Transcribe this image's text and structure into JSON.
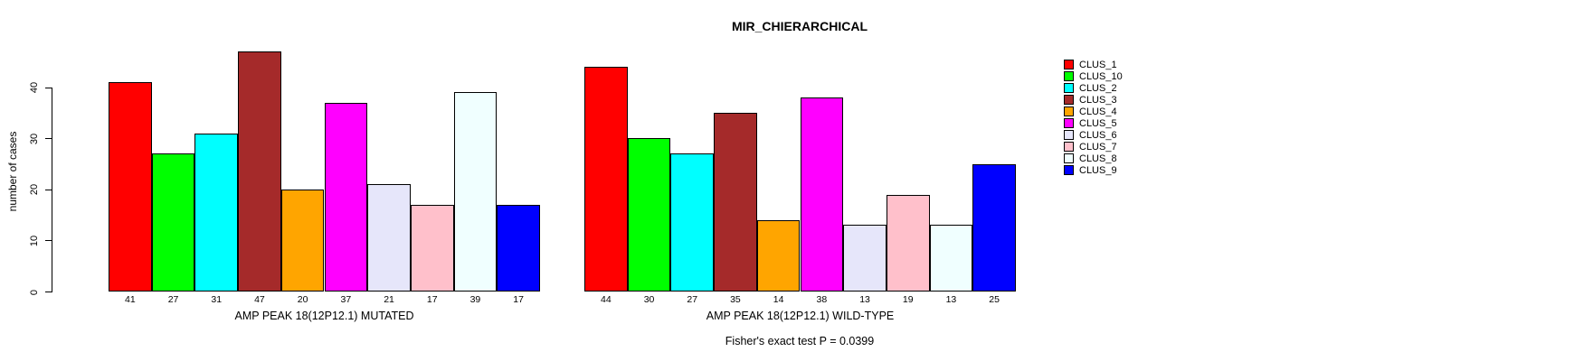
{
  "chart_data": {
    "type": "bar",
    "title": "MIR_CHIERARCHICAL",
    "ylabel": "number of cases",
    "yticks": [
      0,
      10,
      20,
      30,
      40
    ],
    "ylim": [
      0,
      47
    ],
    "grid": false,
    "legend_position": "right",
    "bar_value_labels_shown": true,
    "categories": [
      "AMP PEAK 18(12P12.1) MUTATED",
      "AMP PEAK 18(12P12.1) WILD-TYPE"
    ],
    "series": [
      {
        "name": "CLUS_1",
        "color": "#FF0000",
        "values": [
          41,
          44
        ]
      },
      {
        "name": "CLUS_10",
        "color": "#00FF00",
        "values": [
          27,
          30
        ]
      },
      {
        "name": "CLUS_2",
        "color": "#00FFFF",
        "values": [
          31,
          27
        ]
      },
      {
        "name": "CLUS_3",
        "color": "#A52A2A",
        "values": [
          47,
          35
        ]
      },
      {
        "name": "CLUS_4",
        "color": "#FFA500",
        "values": [
          20,
          14
        ]
      },
      {
        "name": "CLUS_5",
        "color": "#FF00FF",
        "values": [
          37,
          38
        ]
      },
      {
        "name": "CLUS_6",
        "color": "#E6E6FA",
        "values": [
          21,
          13
        ]
      },
      {
        "name": "CLUS_7",
        "color": "#FFC0CB",
        "values": [
          17,
          19
        ]
      },
      {
        "name": "CLUS_8",
        "color": "#F0FFFF",
        "values": [
          39,
          13
        ]
      },
      {
        "name": "CLUS_9",
        "color": "#0000FF",
        "values": [
          17,
          25
        ]
      }
    ],
    "annotation": "Fisher's exact test P = 0.0399",
    "axis_color": "#000000",
    "background_color": "#FFFFFF"
  }
}
